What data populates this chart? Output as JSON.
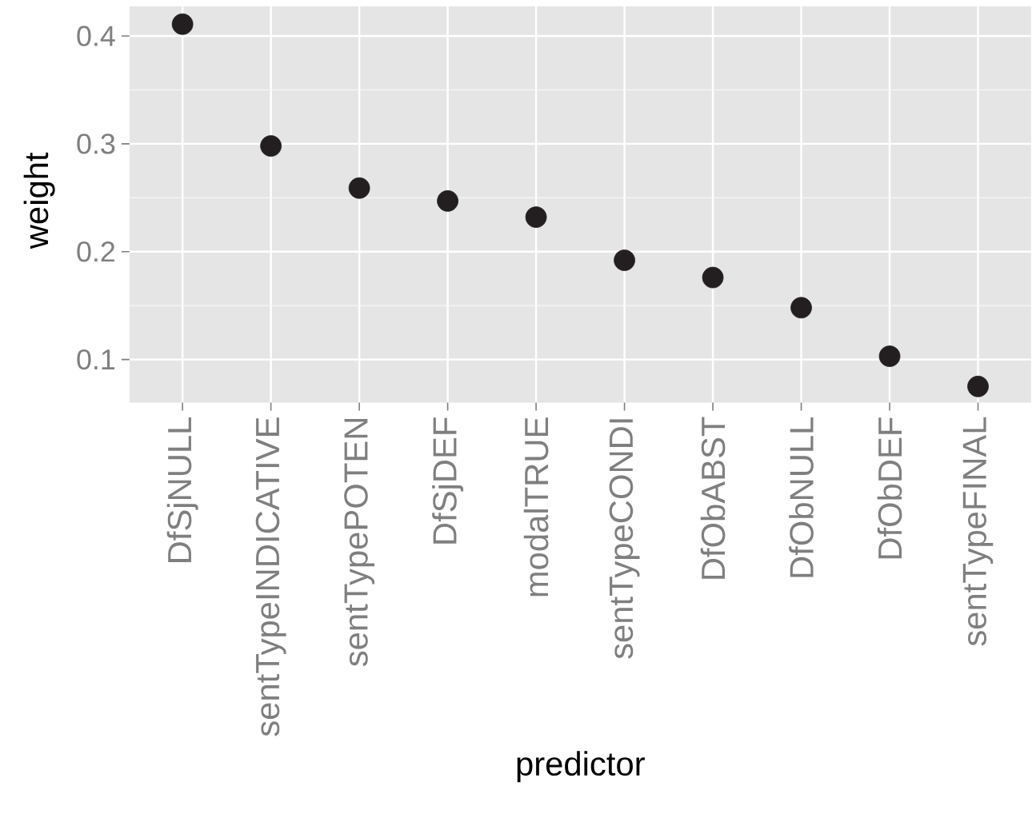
{
  "chart_data": {
    "type": "scatter",
    "xlabel": "predictor",
    "ylabel": "weight",
    "categories": [
      "DfSjNULL",
      "sentTypeINDICATIVE",
      "sentTypePOTEN",
      "DfSjDEF",
      "modalTRUE",
      "sentTypeCONDI",
      "DfObABST",
      "DfObNULL",
      "DfObDEF",
      "sentTypeFINAL"
    ],
    "values": [
      0.411,
      0.298,
      0.259,
      0.247,
      0.232,
      0.192,
      0.176,
      0.148,
      0.103,
      0.075
    ],
    "color": "#231f20",
    "marker": "circle",
    "ylim": [
      0.06,
      0.4275
    ],
    "yticks": [
      0.1,
      0.2,
      0.3,
      0.4
    ],
    "grid": true
  }
}
